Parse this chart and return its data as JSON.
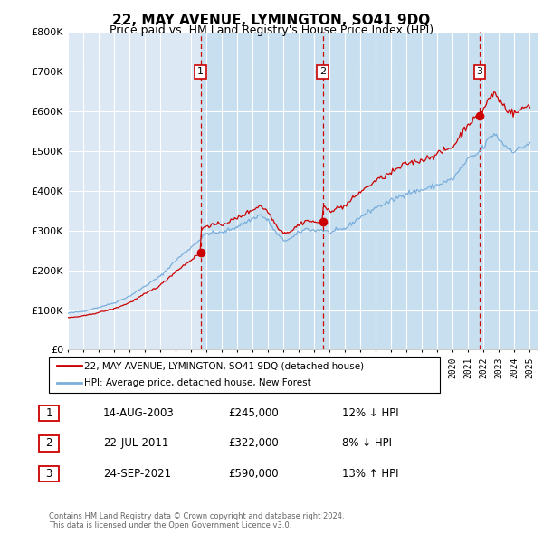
{
  "title": "22, MAY AVENUE, LYMINGTON, SO41 9DQ",
  "subtitle": "Price paid vs. HM Land Registry's House Price Index (HPI)",
  "sale_color": "#cc0000",
  "hpi_color": "#7aaedb",
  "shade_color": "#c8dff0",
  "grid_color": "#ffffff",
  "bg_color": "#dce9f5",
  "legend_line1": "22, MAY AVENUE, LYMINGTON, SO41 9DQ (detached house)",
  "legend_line2": "HPI: Average price, detached house, New Forest",
  "footer": "Contains HM Land Registry data © Crown copyright and database right 2024.\nThis data is licensed under the Open Government Licence v3.0.",
  "transactions": [
    {
      "num": 1,
      "date": "14-AUG-2003",
      "price": 245000,
      "pct": "12%",
      "dir": "↓",
      "x": 2003.62
    },
    {
      "num": 2,
      "date": "22-JUL-2011",
      "price": 322000,
      "pct": "8%",
      "dir": "↓",
      "x": 2011.55
    },
    {
      "num": 3,
      "date": "24-SEP-2021",
      "price": 590000,
      "pct": "13%",
      "dir": "↑",
      "x": 2021.73
    }
  ],
  "xlim": [
    1995.0,
    2025.5
  ],
  "ylim": [
    0,
    800000
  ],
  "yticks": [
    0,
    100000,
    200000,
    300000,
    400000,
    500000,
    600000,
    700000,
    800000
  ],
  "ytick_labels": [
    "£0",
    "£100K",
    "£200K",
    "£300K",
    "£400K",
    "£500K",
    "£600K",
    "£700K",
    "£800K"
  ]
}
